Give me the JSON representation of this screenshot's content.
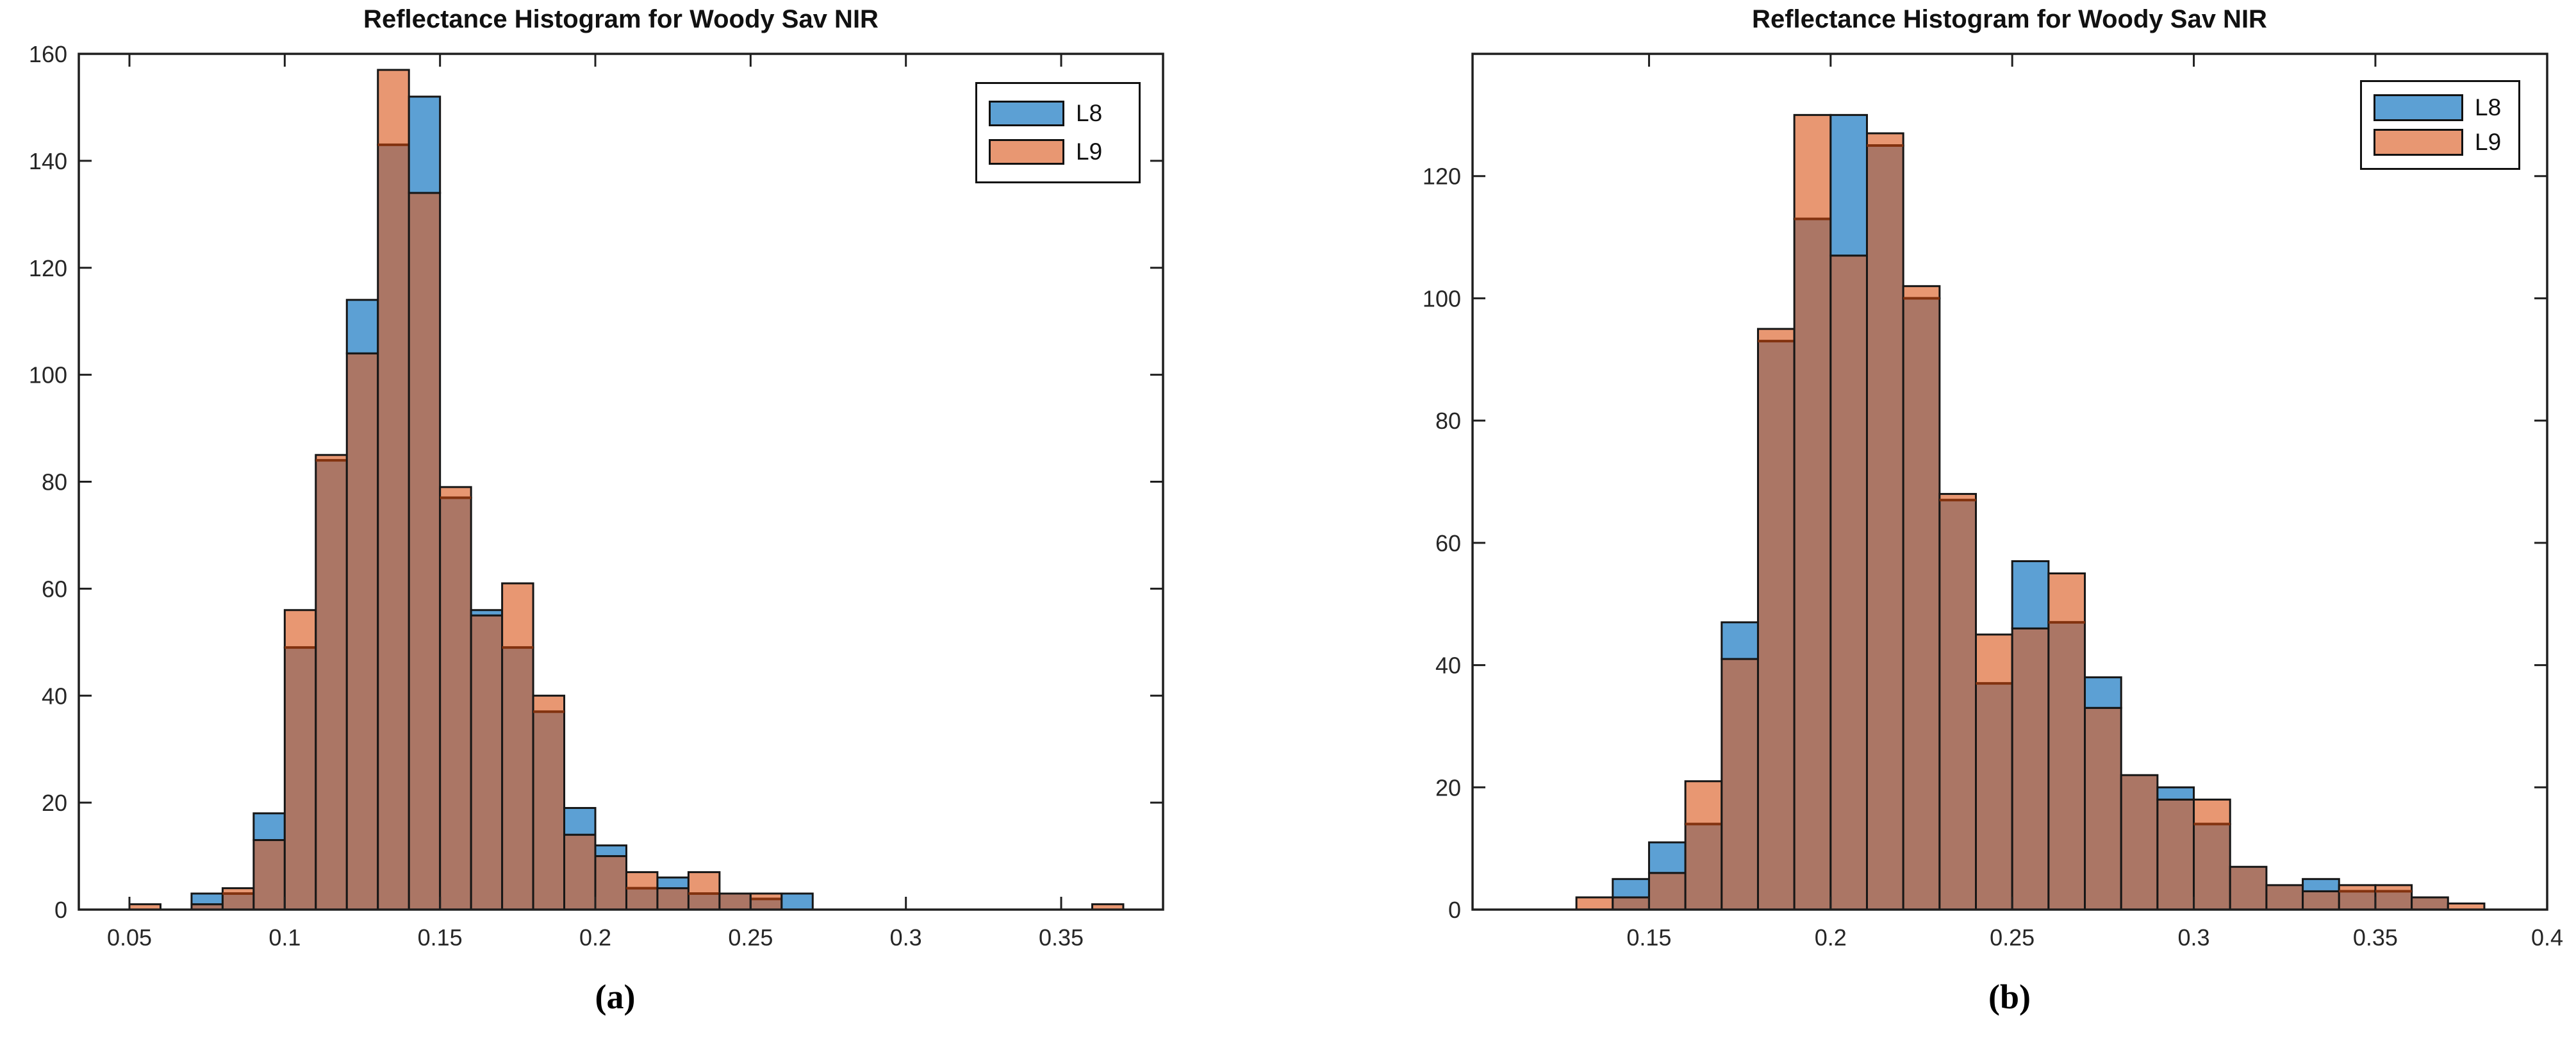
{
  "colors": {
    "l8_blue": "#5CA0D4",
    "l9_orange": "#E89772",
    "overlap_brown": "#AB7665",
    "bar_edge": "#161616",
    "orange_over_edge": "#82320F",
    "axis": "#1f1f1f",
    "tick_label": "#262626"
  },
  "chart_data": [
    {
      "type": "bar",
      "variant": "overlaid-histogram",
      "title": "Reflectance Histogram for Woody Sav NIR",
      "caption": "(a)",
      "xlabel": "",
      "ylabel": "",
      "grid": false,
      "xlim": [
        0.0337,
        0.3828
      ],
      "ylim": [
        0,
        160
      ],
      "xticks": [
        0.05,
        0.1,
        0.15,
        0.2,
        0.25,
        0.3,
        0.35
      ],
      "xtick_labels": [
        "0.05",
        "0.1",
        "0.15",
        "0.2",
        "0.25",
        "0.3",
        "0.35"
      ],
      "yticks": [
        0,
        20,
        40,
        60,
        80,
        100,
        120,
        140,
        160
      ],
      "bin_start": 0.05,
      "bin_width": 0.01,
      "legend": {
        "position": "top-right",
        "entries": [
          {
            "label": "L8",
            "color_key": "l8_blue"
          },
          {
            "label": "L9",
            "color_key": "l9_orange"
          }
        ]
      },
      "series": [
        {
          "name": "L8",
          "values": [
            0,
            0,
            3,
            3,
            18,
            49,
            84,
            114,
            143,
            152,
            77,
            56,
            49,
            37,
            19,
            12,
            4,
            6,
            3,
            3,
            2,
            3,
            0,
            0,
            0,
            0,
            0,
            0,
            0,
            0,
            0,
            0
          ]
        },
        {
          "name": "L9",
          "values": [
            1,
            0,
            1,
            4,
            13,
            56,
            85,
            104,
            157,
            134,
            79,
            55,
            61,
            40,
            14,
            10,
            7,
            4,
            7,
            3,
            3,
            0,
            0,
            0,
            0,
            0,
            0,
            0,
            0,
            0,
            0,
            1
          ]
        }
      ]
    },
    {
      "type": "bar",
      "variant": "overlaid-histogram",
      "title": "Reflectance Histogram for Woody Sav NIR",
      "caption": "(b)",
      "xlabel": "",
      "ylabel": "",
      "grid": false,
      "xlim": [
        0.1014,
        0.3973
      ],
      "ylim": [
        0,
        140
      ],
      "xticks": [
        0.15,
        0.2,
        0.25,
        0.3,
        0.35,
        0.4
      ],
      "xtick_labels": [
        "0.15",
        "0.2",
        "0.25",
        "0.3",
        "0.35",
        "0.4"
      ],
      "yticks": [
        0,
        20,
        40,
        60,
        80,
        100,
        120
      ],
      "bin_start": 0.13,
      "bin_width": 0.01,
      "legend": {
        "position": "top-right",
        "entries": [
          {
            "label": "L8",
            "color_key": "l8_blue"
          },
          {
            "label": "L9",
            "color_key": "l9_orange"
          }
        ]
      },
      "series": [
        {
          "name": "L8",
          "values": [
            0,
            5,
            11,
            14,
            47,
            93,
            113,
            130,
            125,
            100,
            67,
            37,
            57,
            47,
            38,
            22,
            20,
            14,
            7,
            4,
            5,
            3,
            3,
            2,
            0
          ]
        },
        {
          "name": "L9",
          "values": [
            2,
            2,
            6,
            21,
            41,
            95,
            130,
            107,
            127,
            102,
            68,
            45,
            46,
            55,
            33,
            22,
            18,
            18,
            7,
            4,
            3,
            4,
            4,
            2,
            1
          ]
        }
      ]
    }
  ]
}
